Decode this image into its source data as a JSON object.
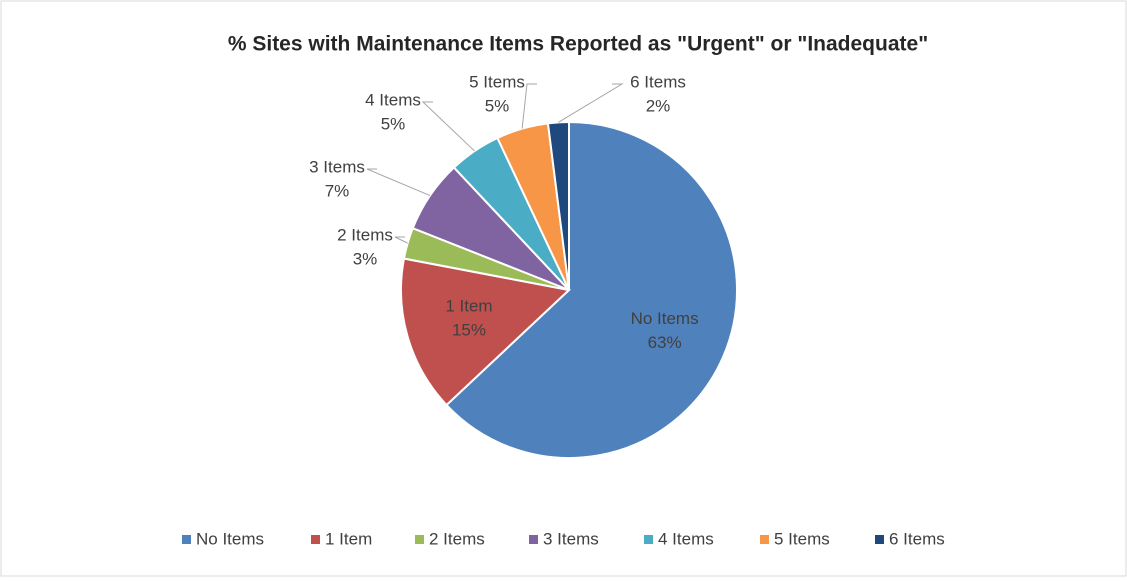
{
  "chart_data": {
    "type": "pie",
    "title": "% Sites with Maintenance Items Reported as \"Urgent\" or \"Inadequate\"",
    "categories": [
      "No Items",
      "1 Item",
      "2 Items",
      "3 Items",
      "4 Items",
      "5 Items",
      "6 Items"
    ],
    "values": [
      63,
      15,
      3,
      7,
      5,
      5,
      2
    ],
    "value_labels": [
      "63%",
      "15%",
      "3%",
      "7%",
      "5%",
      "5%",
      "2%"
    ],
    "colors": [
      "#4f81bd",
      "#c0504d",
      "#9bbb59",
      "#8064a2",
      "#4bacc6",
      "#f79646",
      "#1f497d"
    ],
    "legend": "bottom"
  }
}
